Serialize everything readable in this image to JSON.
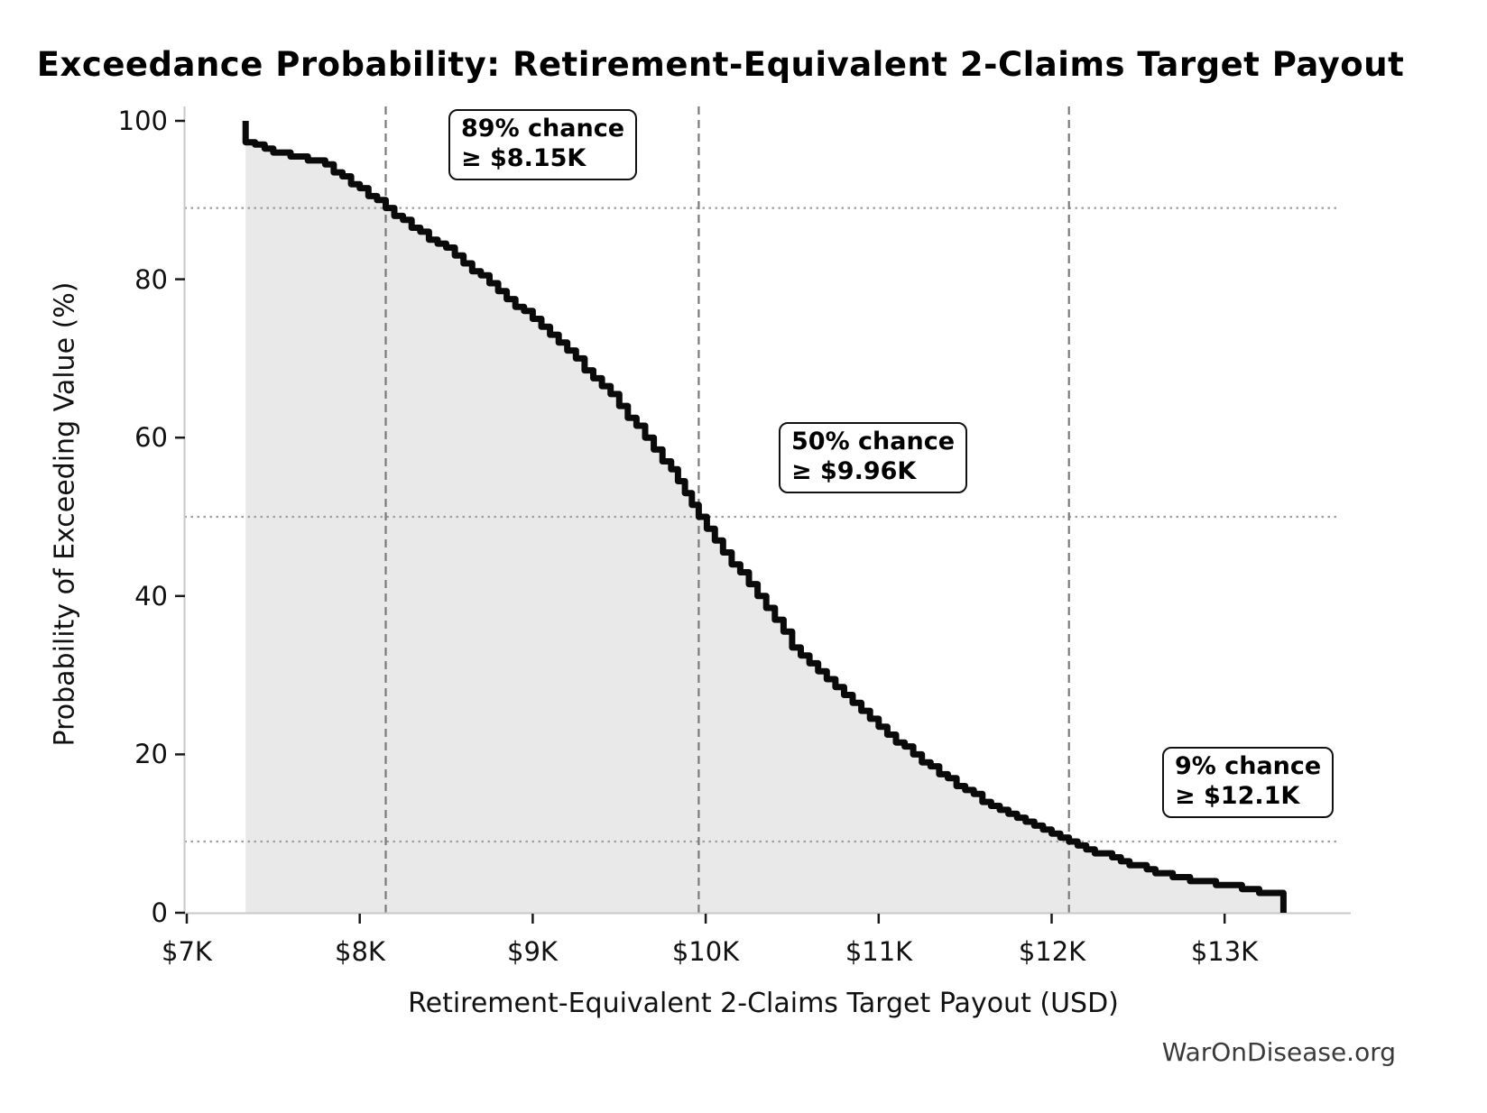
{
  "title": "Exceedance Probability: Retirement-Equivalent 2-Claims Target Payout",
  "watermark": "WarOnDisease.org",
  "chart_data": {
    "type": "line",
    "subtype": "exceedance-probability-curve",
    "title": "Exceedance Probability: Retirement-Equivalent 2-Claims Target Payout",
    "xlabel": "Retirement-Equivalent 2-Claims Target Payout (USD)",
    "ylabel": "Probability of Exceeding Value (%)",
    "x_unit": "USD thousands (K)",
    "xlim": [
      6.98,
      13.63
    ],
    "ylim": [
      0,
      100
    ],
    "grid": false,
    "legend": false,
    "fill_under_curve": true,
    "x_ticks": [
      {
        "value": 7,
        "label": "$7K"
      },
      {
        "value": 8,
        "label": "$8K"
      },
      {
        "value": 9,
        "label": "$9K"
      },
      {
        "value": 10,
        "label": "$10K"
      },
      {
        "value": 11,
        "label": "$11K"
      },
      {
        "value": 12,
        "label": "$12K"
      },
      {
        "value": 13,
        "label": "$13K"
      }
    ],
    "y_ticks": [
      {
        "value": 0,
        "label": "0"
      },
      {
        "value": 20,
        "label": "20"
      },
      {
        "value": 40,
        "label": "40"
      },
      {
        "value": 60,
        "label": "60"
      },
      {
        "value": 80,
        "label": "80"
      },
      {
        "value": 100,
        "label": "100"
      }
    ],
    "series": [
      {
        "name": "Probability of exceeding payout value",
        "points": [
          [
            7.34,
            100
          ],
          [
            7.34,
            97.3
          ],
          [
            7.45,
            96.6
          ],
          [
            7.6,
            95.6
          ],
          [
            7.75,
            94.8
          ],
          [
            7.9,
            93.0
          ],
          [
            8.0,
            91.3
          ],
          [
            8.15,
            89.0
          ],
          [
            8.3,
            86.6
          ],
          [
            8.5,
            83.8
          ],
          [
            8.6,
            81.9
          ],
          [
            8.7,
            80.3
          ],
          [
            8.9,
            76.6
          ],
          [
            9.0,
            75.0
          ],
          [
            9.1,
            73.0
          ],
          [
            9.2,
            70.8
          ],
          [
            9.3,
            68.7
          ],
          [
            9.4,
            66.4
          ],
          [
            9.5,
            64.0
          ],
          [
            9.6,
            61.4
          ],
          [
            9.7,
            58.7
          ],
          [
            9.8,
            55.8
          ],
          [
            9.96,
            50.0
          ],
          [
            10.1,
            45.6
          ],
          [
            10.2,
            42.9
          ],
          [
            10.3,
            40.2
          ],
          [
            10.4,
            36.8
          ],
          [
            10.5,
            33.6
          ],
          [
            10.6,
            31.4
          ],
          [
            10.7,
            29.4
          ],
          [
            10.8,
            27.4
          ],
          [
            10.9,
            25.4
          ],
          [
            11.0,
            23.4
          ],
          [
            11.1,
            21.6
          ],
          [
            11.2,
            20.0
          ],
          [
            11.3,
            18.4
          ],
          [
            11.4,
            16.8
          ],
          [
            11.5,
            15.3
          ],
          [
            11.6,
            14.1
          ],
          [
            11.7,
            13.0
          ],
          [
            11.8,
            12.0
          ],
          [
            11.9,
            10.9
          ],
          [
            12.0,
            9.9
          ],
          [
            12.1,
            9.0
          ],
          [
            12.2,
            8.1
          ],
          [
            12.3,
            7.3
          ],
          [
            12.4,
            6.5
          ],
          [
            12.5,
            5.8
          ],
          [
            12.6,
            5.2
          ],
          [
            12.7,
            4.7
          ],
          [
            12.8,
            4.2
          ],
          [
            12.9,
            3.8
          ],
          [
            13.0,
            3.4
          ],
          [
            13.1,
            3.0
          ],
          [
            13.2,
            2.6
          ],
          [
            13.34,
            2.2
          ],
          [
            13.34,
            0
          ]
        ]
      }
    ],
    "reference_lines": {
      "vertical_x": [
        8.15,
        9.96,
        12.1
      ],
      "horizontal_y": [
        89,
        50,
        9
      ]
    },
    "annotations": [
      {
        "line1": "89% chance",
        "line2": "≥ $8.15K",
        "x": 8.15,
        "probability_pct": 89
      },
      {
        "line1": "50% chance",
        "line2": "≥ $9.96K",
        "x": 9.96,
        "probability_pct": 50
      },
      {
        "line1": "9% chance",
        "line2": "≥ $12.1K",
        "x": 12.1,
        "probability_pct": 9
      }
    ],
    "colors": {
      "curve": "#0a0a0a",
      "fill": "#e9e9e9",
      "dashed_reference": "#7a7a7a",
      "dotted_reference": "#9f9f9f",
      "spine": "#c8c8c8",
      "tick_mark": "#1a1a1a",
      "text": "#000000",
      "watermark": "#3a3a3a"
    }
  }
}
